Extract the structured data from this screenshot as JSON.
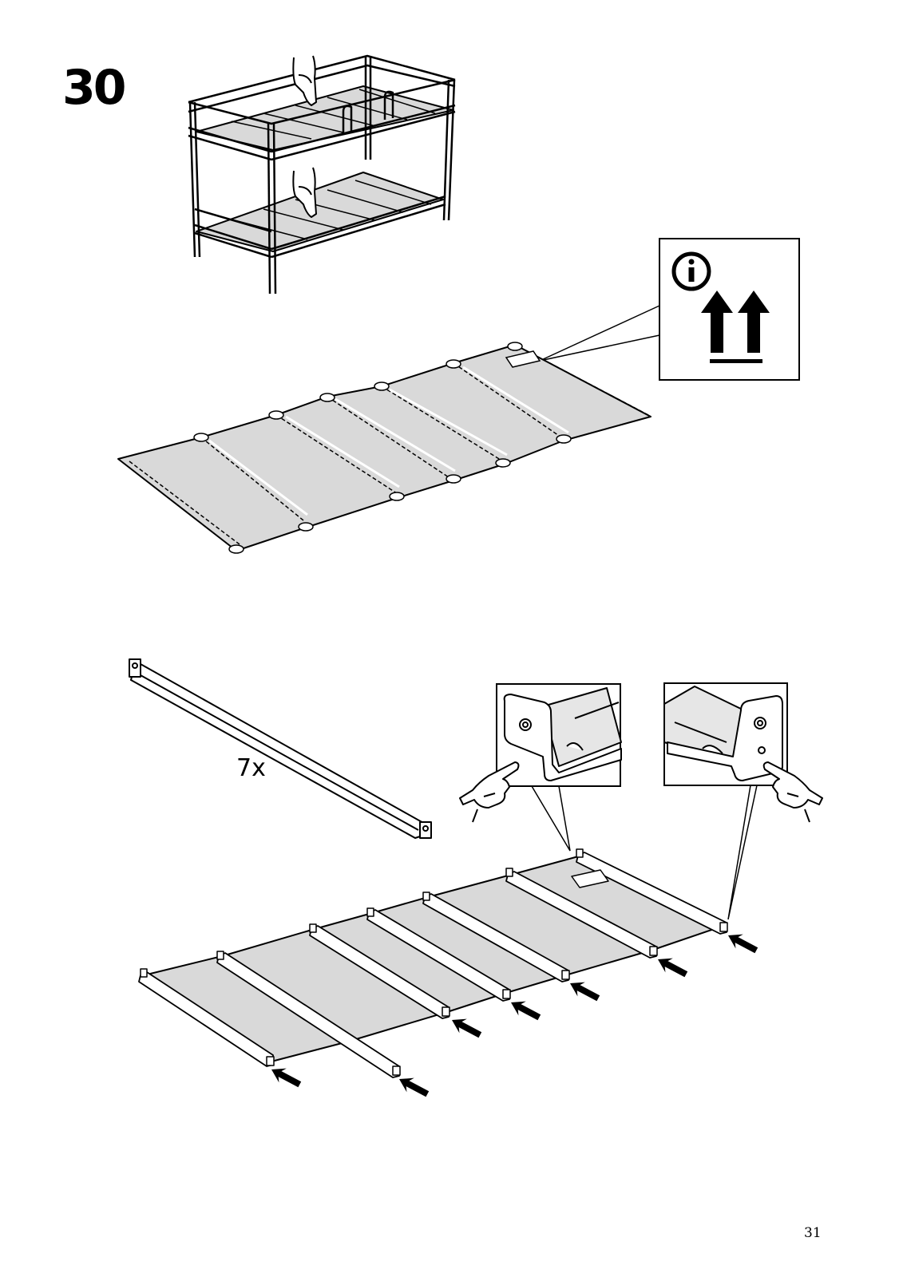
{
  "step": {
    "number": "30"
  },
  "slat_rail": {
    "quantity_label": "7x"
  },
  "page": {
    "number": "31"
  },
  "icons": {
    "info": "info-circle-icon",
    "orientation": "this-way-up-arrows-icon",
    "insert": "insert-arrow-icon",
    "hand": "pointing-hand-icon"
  },
  "colors": {
    "fabric": "#d9d9d9",
    "line": "#000000",
    "background": "#ffffff"
  }
}
